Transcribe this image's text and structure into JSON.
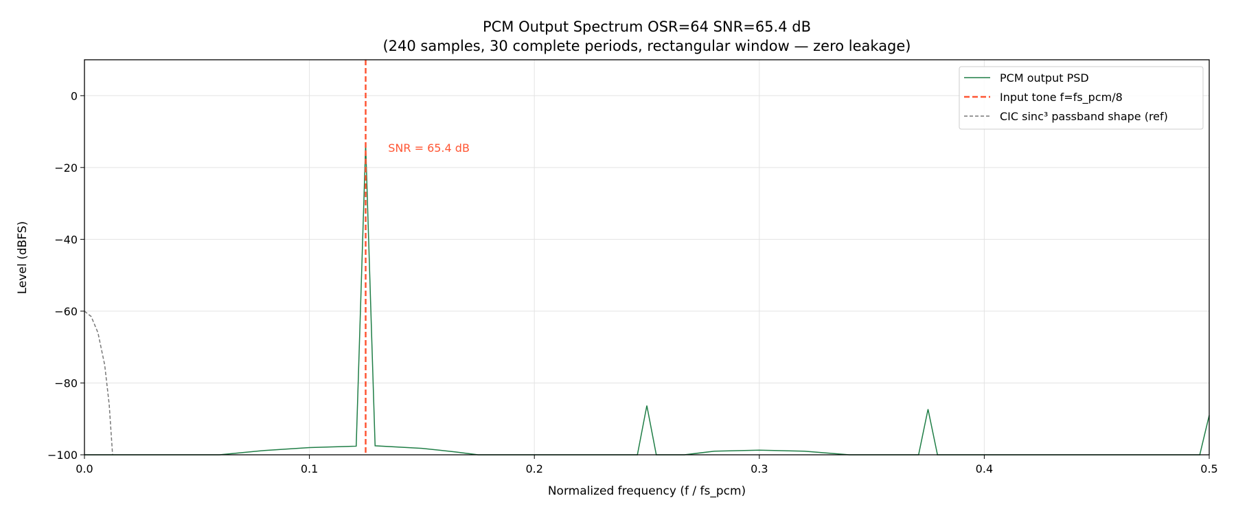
{
  "chart_data": {
    "type": "line",
    "title": "PCM Output Spectrum  OSR=64  SNR=65.4 dB",
    "subtitle": "(240 samples, 30 complete periods, rectangular window — zero leakage)",
    "xlabel": "Normalized frequency (f / fs_pcm)",
    "ylabel": "Level (dBFS)",
    "xlim": [
      0,
      0.5
    ],
    "ylim": [
      -100,
      10
    ],
    "xticks": [
      "0.0",
      "0.1",
      "0.2",
      "0.3",
      "0.4",
      "0.5"
    ],
    "yticks": [
      "−100",
      "−80",
      "−60",
      "−40",
      "−20",
      "0"
    ],
    "grid": true,
    "legend_position": "top-right",
    "series": [
      {
        "name": "PCM output PSD",
        "color": "#1e7d45",
        "style": "solid",
        "x": [
          0,
          0.06,
          0.08,
          0.1,
          0.1208,
          0.125,
          0.1292,
          0.15,
          0.165,
          0.175,
          0.2458,
          0.25,
          0.2542,
          0.2667,
          0.28,
          0.3,
          0.32,
          0.34,
          0.3708,
          0.375,
          0.3792,
          0.4958,
          0.5
        ],
        "y": [
          -100,
          -100,
          -98.8,
          -98,
          -97.6,
          -13.5,
          -97.5,
          -98.2,
          -99.2,
          -100,
          -100,
          -86.3,
          -100,
          -100,
          -99,
          -98.7,
          -99,
          -100,
          -100,
          -87.3,
          -100,
          -100,
          -89
        ]
      },
      {
        "name": "Input tone  f=fs_pcm/8",
        "color": "#ff5533",
        "style": "dashed-vertical",
        "x": [
          0.125
        ]
      },
      {
        "name": "CIC sinc³ passband shape (ref)",
        "color": "#777777",
        "style": "dashed",
        "x": [
          0,
          0.003,
          0.006,
          0.009,
          0.011,
          0.0125
        ],
        "y": [
          -60,
          -61.5,
          -66,
          -75,
          -86,
          -100
        ]
      }
    ],
    "annotations": [
      {
        "text": "SNR = 65.4 dB",
        "x": 0.135,
        "y": -14.5,
        "color": "#ff5533"
      }
    ]
  }
}
